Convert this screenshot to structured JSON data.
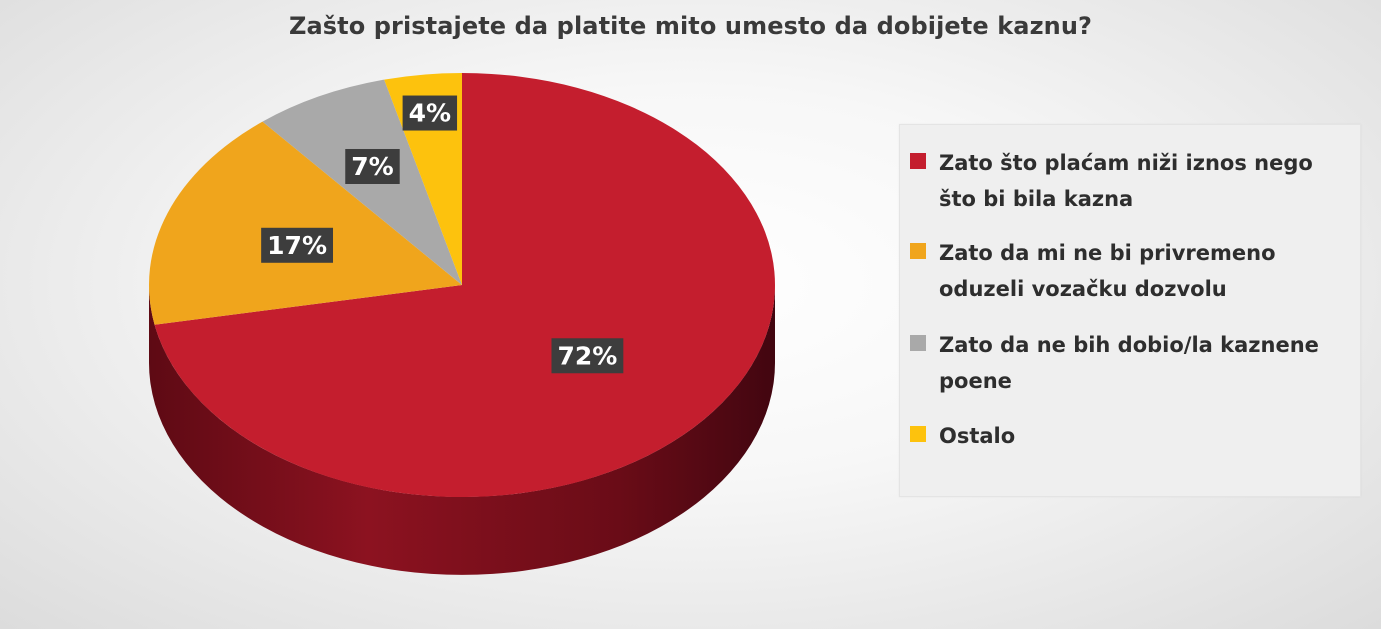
{
  "chart_data": {
    "type": "pie",
    "title": "Zašto pristajete da platite mito umesto da dobijete kaznu?",
    "slices": [
      {
        "label": "Zato što plaćam niži iznos nego što bi bila kazna",
        "value": 72,
        "display": "72%",
        "color": "#c41e2e"
      },
      {
        "label": "Zato da mi ne bi privremeno oduzeli vozačku dozvolu",
        "value": 17,
        "display": "17%",
        "color": "#f0a51c"
      },
      {
        "label": "Zato da ne bih dobio/la kaznene poene",
        "value": 7,
        "display": "7%",
        "color": "#a9a9a9"
      },
      {
        "label": "Ostalo",
        "value": 4,
        "display": "4%",
        "color": "#fdc20d"
      }
    ],
    "legend_position": "right",
    "style": "3d"
  },
  "colors": {
    "label_box": "#3d3d3d",
    "side_red": "#7a0d18",
    "side_red_dark": "#4d0810"
  }
}
